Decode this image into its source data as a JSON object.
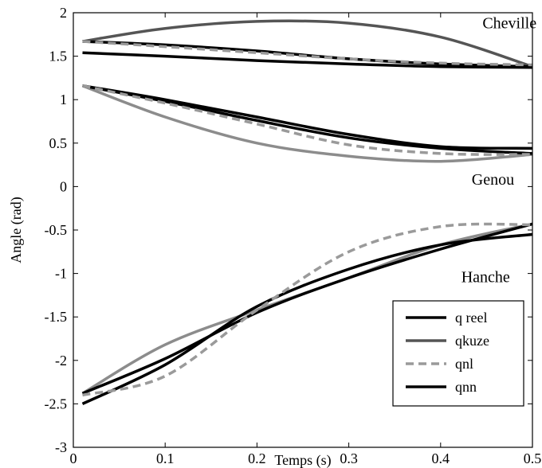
{
  "chart_data": {
    "type": "line",
    "title": "",
    "xlabel": "Temps (s)",
    "ylabel": "Angle (rad)",
    "xlim": [
      0,
      0.5
    ],
    "ylim": [
      -3,
      2
    ],
    "x_ticks": [
      {
        "v": 0,
        "label": "0"
      },
      {
        "v": 0.1,
        "label": "0.1"
      },
      {
        "v": 0.2,
        "label": "0.2"
      },
      {
        "v": 0.3,
        "label": "0.3"
      },
      {
        "v": 0.4,
        "label": "0.4"
      },
      {
        "v": 0.5,
        "label": "0.5"
      }
    ],
    "y_ticks": [
      {
        "v": 2,
        "label": "2"
      },
      {
        "v": 1.5,
        "label": "1.5"
      },
      {
        "v": 1,
        "label": "1"
      },
      {
        "v": 0.5,
        "label": "0.5"
      },
      {
        "v": 0,
        "label": "0"
      },
      {
        "v": -0.5,
        "label": "-0.5"
      },
      {
        "v": -1,
        "label": "-1"
      },
      {
        "v": -1.5,
        "label": "-1.5"
      },
      {
        "v": -2,
        "label": "-2"
      },
      {
        "v": -2.5,
        "label": "-2.5"
      },
      {
        "v": -3,
        "label": "-3"
      }
    ],
    "grid": false,
    "legend_position": "bottom-right",
    "annotations": [
      {
        "text": "Cheville",
        "x": 0.475,
        "y": 1.82
      },
      {
        "text": "Genou",
        "x": 0.457,
        "y": 0.02
      },
      {
        "text": "Hanche",
        "x": 0.449,
        "y": -1.1
      }
    ],
    "series": [
      {
        "name": "q reel",
        "color": "#000000",
        "dash": false,
        "width": 3.5,
        "groups": [
          {
            "x": [
              0.01,
              0.1,
              0.2,
              0.3,
              0.4,
              0.5
            ],
            "y": [
              1.54,
              1.5,
              1.45,
              1.41,
              1.38,
              1.37
            ]
          },
          {
            "x": [
              0.01,
              0.1,
              0.2,
              0.3,
              0.4,
              0.5
            ],
            "y": [
              1.16,
              0.98,
              0.76,
              0.56,
              0.44,
              0.38
            ]
          },
          {
            "x": [
              0.01,
              0.1,
              0.2,
              0.3,
              0.4,
              0.5
            ],
            "y": [
              -2.5,
              -2.05,
              -1.38,
              -0.95,
              -0.67,
              -0.55
            ]
          }
        ]
      },
      {
        "name": "qkuze",
        "color": "#555555",
        "dash": false,
        "width": 3.5,
        "groups": [
          {
            "x": [
              0.01,
              0.1,
              0.2,
              0.3,
              0.4,
              0.5
            ],
            "y": [
              1.67,
              1.82,
              1.9,
              1.88,
              1.72,
              1.38
            ]
          }
        ]
      },
      {
        "name": "qnl",
        "color": "#9a9a9a",
        "dash": true,
        "width": 3.5,
        "groups": [
          {
            "x": [
              0.01,
              0.1,
              0.2,
              0.3,
              0.4,
              0.5
            ],
            "y": [
              1.67,
              1.61,
              1.54,
              1.47,
              1.42,
              1.4
            ]
          },
          {
            "x": [
              0.01,
              0.1,
              0.2,
              0.3,
              0.4,
              0.5
            ],
            "y": [
              1.16,
              0.96,
              0.72,
              0.48,
              0.38,
              0.37
            ]
          },
          {
            "x": [
              0.01,
              0.1,
              0.2,
              0.3,
              0.4,
              0.5
            ],
            "y": [
              -2.4,
              -2.18,
              -1.42,
              -0.75,
              -0.46,
              -0.44
            ]
          }
        ]
      },
      {
        "name": "qnn",
        "color": "#000000",
        "dash": false,
        "width": 3.5,
        "groups": [
          {
            "x": [
              0.01,
              0.1,
              0.2,
              0.3,
              0.4,
              0.5
            ],
            "y": [
              1.67,
              1.63,
              1.56,
              1.47,
              1.41,
              1.38
            ]
          },
          {
            "x": [
              0.01,
              0.1,
              0.2,
              0.3,
              0.4,
              0.5
            ],
            "y": [
              1.16,
              1.0,
              0.8,
              0.6,
              0.46,
              0.44
            ]
          },
          {
            "x": [
              0.01,
              0.1,
              0.2,
              0.3,
              0.4,
              0.5
            ],
            "y": [
              -2.38,
              -1.98,
              -1.45,
              -1.05,
              -0.72,
              -0.43
            ]
          }
        ]
      },
      {
        "name": "",
        "color": "#8c8c8c",
        "dash": false,
        "width": 3.5,
        "groups": [
          {
            "x": [
              0.01,
              0.1,
              0.2,
              0.3,
              0.4,
              0.5
            ],
            "y": [
              1.16,
              0.8,
              0.5,
              0.35,
              0.29,
              0.37
            ]
          },
          {
            "x": [
              0.01,
              0.1,
              0.2,
              0.3,
              0.4,
              0.5
            ],
            "y": [
              -2.38,
              -1.82,
              -1.42,
              -1.05,
              -0.67,
              -0.43
            ]
          }
        ]
      }
    ]
  }
}
